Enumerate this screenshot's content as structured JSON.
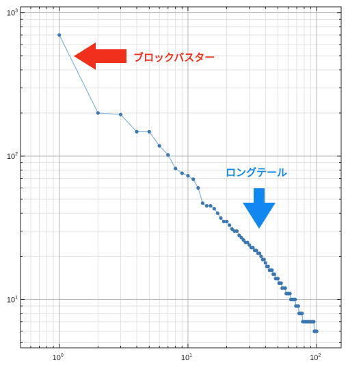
{
  "chart_data": {
    "type": "line",
    "title": "",
    "xlabel": "",
    "ylabel": "",
    "x_scale": "log",
    "y_scale": "log",
    "xlim": [
      0.5,
      155
    ],
    "ylim": [
      4.6,
      1100
    ],
    "grid": true,
    "x_ticks": [
      {
        "base": "10",
        "exp": "0",
        "value": 1
      },
      {
        "base": "10",
        "exp": "1",
        "value": 10
      },
      {
        "base": "10",
        "exp": "2",
        "value": 100
      }
    ],
    "y_ticks": [
      {
        "base": "10",
        "exp": "1",
        "value": 10
      },
      {
        "base": "10",
        "exp": "2",
        "value": 100
      },
      {
        "base": "10",
        "exp": "3",
        "value": 1000
      }
    ],
    "series": [
      {
        "color": "#3b77b0",
        "line_color": "#7fb2dc",
        "x": [
          1,
          2,
          3,
          4,
          5,
          6,
          7,
          8,
          9,
          10,
          11,
          12,
          13,
          14,
          15,
          16,
          17,
          18,
          19,
          20,
          21,
          22,
          23,
          24,
          25,
          26,
          27,
          28,
          29,
          30,
          31,
          32,
          33,
          34,
          35,
          36,
          37,
          38,
          39,
          40,
          41,
          42,
          43,
          44,
          45,
          46,
          47,
          48,
          49,
          50,
          51,
          52,
          53,
          54,
          55,
          56,
          57,
          58,
          59,
          60,
          61,
          62,
          63,
          64,
          65,
          66,
          67,
          68,
          69,
          70,
          71,
          72,
          73,
          74,
          75,
          76,
          77,
          78,
          79,
          80,
          81,
          82,
          83,
          84,
          85,
          86,
          87,
          88,
          89,
          90,
          91,
          92,
          93,
          94,
          95,
          96,
          97,
          98,
          99,
          100
        ],
        "values": [
          700,
          200,
          195,
          148,
          148,
          118,
          102,
          82,
          76,
          73,
          69,
          60,
          47,
          45,
          45,
          43,
          40,
          37,
          35,
          35,
          33,
          31,
          30,
          30,
          28,
          27,
          26,
          25,
          25,
          24,
          23,
          23,
          22,
          22,
          21,
          21,
          20,
          19,
          19,
          18,
          17,
          17,
          16,
          16,
          16,
          15,
          15,
          14,
          14,
          14,
          13,
          13,
          13,
          12,
          12,
          12,
          12,
          11,
          11,
          11,
          11,
          11,
          10,
          10,
          10,
          10,
          10,
          10,
          9,
          9,
          9,
          9,
          8,
          8,
          8,
          8,
          8,
          7,
          7,
          7,
          7,
          7,
          7,
          7,
          7,
          7,
          7,
          7,
          7,
          7,
          7,
          7,
          7,
          7,
          7,
          6,
          6,
          6,
          6,
          6
        ]
      }
    ]
  },
  "annotations": {
    "blockbuster": {
      "text": "ブロックバスター",
      "color": "#f0301a"
    },
    "longtail": {
      "text": "ロングテール",
      "color": "#1188f0"
    }
  }
}
